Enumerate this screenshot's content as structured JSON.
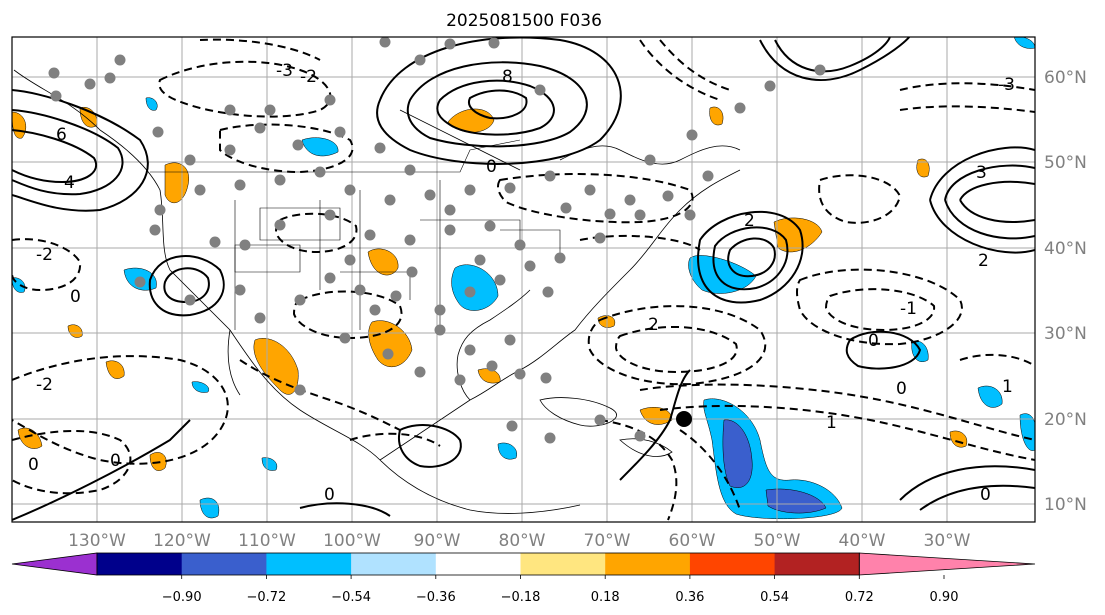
{
  "title": "2025081500 F036",
  "longitude_labels": [
    "130°W",
    "120°W",
    "110°W",
    "100°W",
    "90°W",
    "80°W",
    "70°W",
    "60°W",
    "50°W",
    "40°W",
    "30°W"
  ],
  "latitude_labels": [
    "60°N",
    "50°N",
    "40°N",
    "30°N",
    "20°N",
    "10°N"
  ],
  "colorbar": {
    "tick_labels": [
      "−0.90",
      "−0.72",
      "−0.54",
      "−0.36",
      "−0.18",
      "0.18",
      "0.36",
      "0.54",
      "0.72",
      "0.90"
    ],
    "colors": [
      "#9b30d0",
      "#00008b",
      "#3a5fcd",
      "#00bfff",
      "#b0e2ff",
      "#ffffff",
      "#ffe680",
      "#ffa500",
      "#ff4500",
      "#b22222",
      "#ff82ab"
    ]
  },
  "contour_labels": [
    "-3",
    "-2",
    "-1",
    "0",
    "1",
    "2",
    "3",
    "4",
    "6",
    "8"
  ],
  "colors": {
    "fill_orange": "#ffa500",
    "fill_blue": "#00bfff",
    "fill_darkblue": "#3a5fcd",
    "grid": "#aaaaaa",
    "stations": "#808080"
  }
}
